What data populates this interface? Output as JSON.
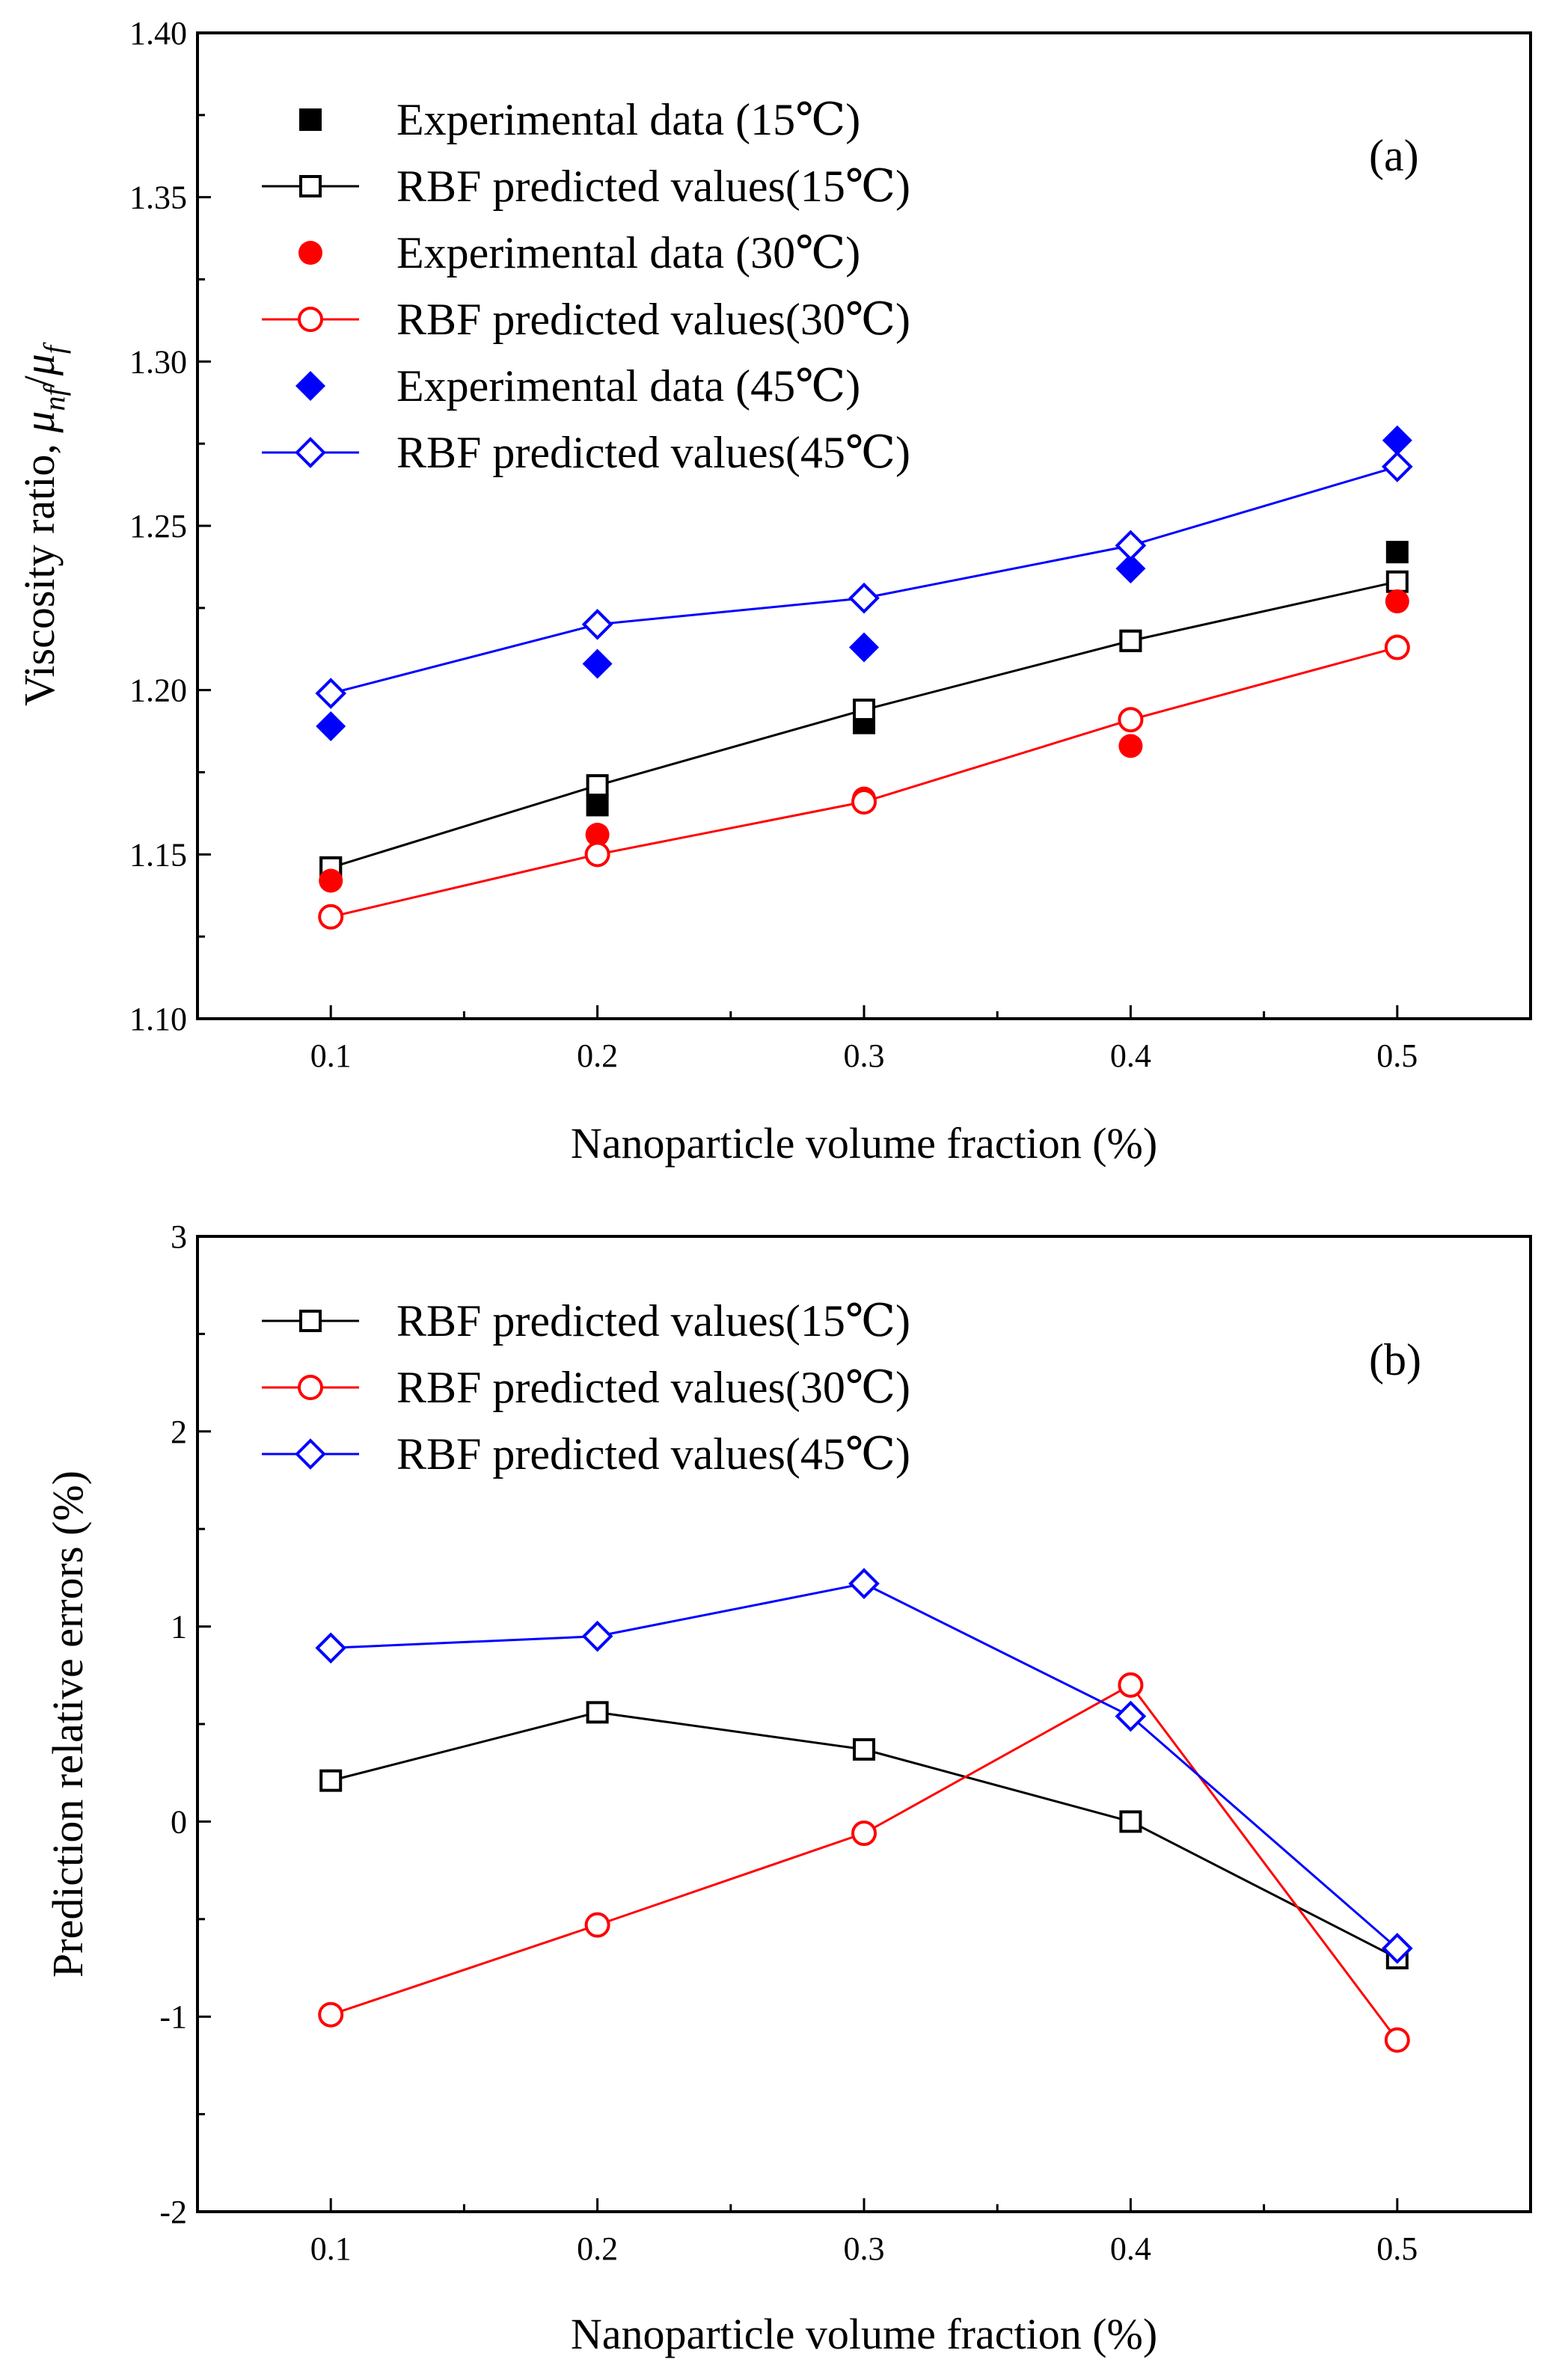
{
  "colors": {
    "black": "#000000",
    "red": "#ff0000",
    "blue": "#0000ff"
  },
  "chart_data": [
    {
      "type": "line",
      "panel_label": "(a)",
      "title": "",
      "xlabel": "Nanoparticle volume fraction (%)",
      "ylabel_parts": {
        "main": "Viscosity ratio, ",
        "mu": "μ",
        "sub_nf": "nf",
        "slash": "/",
        "sub_f": "f"
      },
      "xlim": [
        0.05,
        0.55
      ],
      "ylim": [
        1.1,
        1.4
      ],
      "x_ticks": [
        0.1,
        0.2,
        0.3,
        0.4,
        0.5
      ],
      "x_tick_labels": [
        "0.1",
        "0.2",
        "0.3",
        "0.4",
        "0.5"
      ],
      "y_ticks": [
        1.1,
        1.15,
        1.2,
        1.25,
        1.3,
        1.35,
        1.4
      ],
      "y_tick_labels": [
        "1.10",
        "1.15",
        "1.20",
        "1.25",
        "1.30",
        "1.35",
        "1.40"
      ],
      "grid": false,
      "legend_position": "top-left",
      "x": [
        0.1,
        0.2,
        0.3,
        0.4,
        0.5
      ],
      "series": [
        {
          "name": "Experimental data (15℃)",
          "color": "#000000",
          "marker": "square",
          "filled": true,
          "line": false,
          "values": [
            1.146,
            1.165,
            1.19,
            1.215,
            1.242
          ]
        },
        {
          "name": "RBF predicted values(15℃)",
          "color": "#000000",
          "marker": "square",
          "filled": false,
          "line": true,
          "values": [
            1.146,
            1.171,
            1.194,
            1.215,
            1.233
          ]
        },
        {
          "name": "Experimental data (30℃)",
          "color": "#ff0000",
          "marker": "circle",
          "filled": true,
          "line": false,
          "values": [
            1.142,
            1.156,
            1.167,
            1.183,
            1.227
          ]
        },
        {
          "name": "RBF predicted values(30℃)",
          "color": "#ff0000",
          "marker": "circle",
          "filled": false,
          "line": true,
          "values": [
            1.131,
            1.15,
            1.166,
            1.191,
            1.213
          ]
        },
        {
          "name": "Experimental data (45℃)",
          "color": "#0000ff",
          "marker": "diamond",
          "filled": true,
          "line": false,
          "values": [
            1.189,
            1.208,
            1.213,
            1.237,
            1.276
          ]
        },
        {
          "name": "RBF predicted values(45℃)",
          "color": "#0000ff",
          "marker": "diamond",
          "filled": false,
          "line": true,
          "values": [
            1.199,
            1.22,
            1.228,
            1.244,
            1.268
          ]
        }
      ]
    },
    {
      "type": "line",
      "panel_label": "(b)",
      "title": "",
      "xlabel": "Nanoparticle volume fraction (%)",
      "ylabel": "Prediction relative errors (%)",
      "xlim": [
        0.05,
        0.55
      ],
      "ylim": [
        -2,
        3
      ],
      "x_ticks": [
        0.1,
        0.2,
        0.3,
        0.4,
        0.5
      ],
      "x_tick_labels": [
        "0.1",
        "0.2",
        "0.3",
        "0.4",
        "0.5"
      ],
      "y_ticks": [
        -2,
        -1,
        0,
        1,
        2,
        3
      ],
      "y_tick_labels": [
        "-2",
        "-1",
        "0",
        "1",
        "2",
        "3"
      ],
      "grid": false,
      "legend_position": "top-left",
      "x": [
        0.1,
        0.2,
        0.3,
        0.4,
        0.5
      ],
      "series": [
        {
          "name": "RBF predicted values(15℃)",
          "color": "#000000",
          "marker": "square",
          "filled": false,
          "line": true,
          "values": [
            0.21,
            0.56,
            0.37,
            0.0,
            -0.7
          ]
        },
        {
          "name": "RBF predicted values(30℃)",
          "color": "#ff0000",
          "marker": "circle",
          "filled": false,
          "line": true,
          "values": [
            -0.99,
            -0.53,
            -0.06,
            0.7,
            -1.12
          ]
        },
        {
          "name": "RBF predicted values(45℃)",
          "color": "#0000ff",
          "marker": "diamond",
          "filled": false,
          "line": true,
          "values": [
            0.89,
            0.95,
            1.22,
            0.54,
            -0.65
          ]
        }
      ]
    }
  ]
}
